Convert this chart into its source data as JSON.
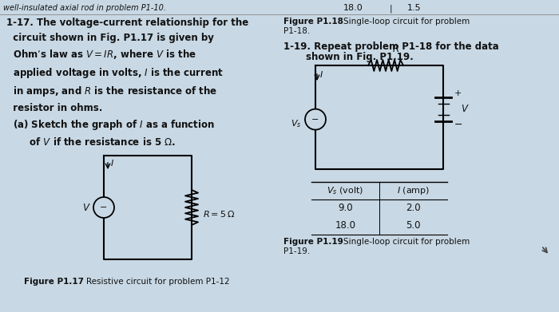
{
  "background_color": "#c8d8e4",
  "text_color": "#111111",
  "font_size_body": 8.5,
  "font_size_caption": 7.5,
  "top_line_left": "well-insulated axial rod in problem P1-10.",
  "top_line_right_a": "18.0",
  "top_line_right_b": "1.5",
  "p117_text": "1-17. The voltage-current relationship for the\n        circuit shown in Fig. P1.17 is given by\n        Ohm’s law as V = IR, where V is the\n        applied voltage in volts, I is the current\n        in amps, and R is the resistance of the\n        resistor in ohms.\n        (a) Sketch the graph of I as a function\n              of V if the resistance is 5 Ω.",
  "fig117_label": "Figure P1.17   Resistive circuit for problem P1-12",
  "fig118_label": "Figure P1.18   Single-loop circuit for problem\nP1-18.",
  "p119_text": "1-19. Repeat problem P1-18 for the data\n        shown in Fig. P1.19.",
  "fig119_label": "Figure P1.19   Single-loop circuit for problem\nP1-19.",
  "table_col1_header": "V, (volt)",
  "table_col2_header": "I (amp)",
  "table_rows": [
    [
      9.0,
      2.0
    ],
    [
      18.0,
      5.0
    ]
  ]
}
